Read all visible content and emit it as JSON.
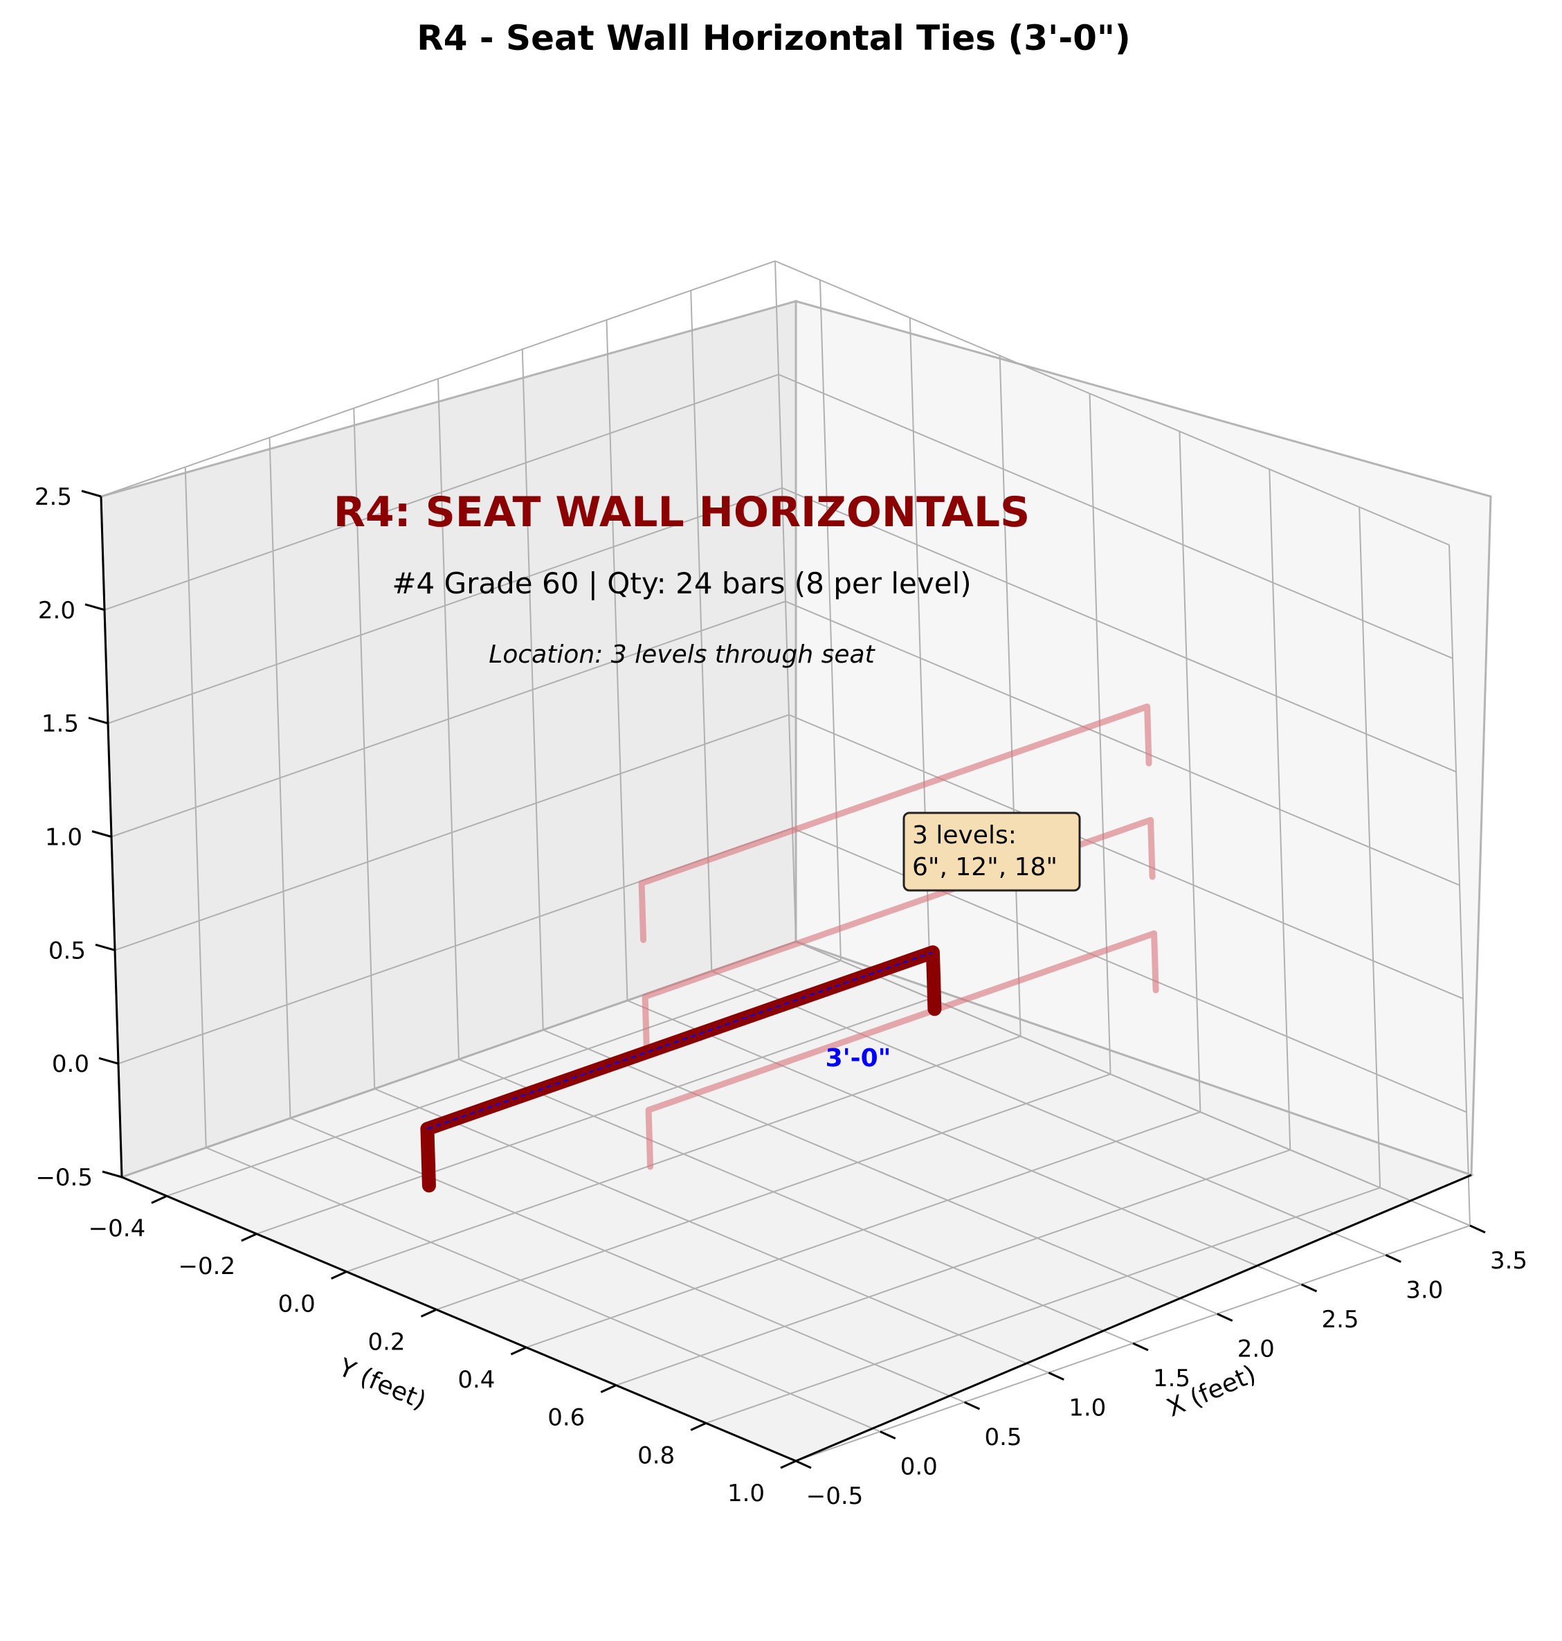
{
  "title": "R4 - Seat Wall Horizontal Ties (3'-0\")",
  "chart_data": {
    "type": "line",
    "projection": "3d",
    "xlabel": "X (feet)",
    "ylabel": "Y (feet)",
    "zlabel": "",
    "xlim": [
      -0.5,
      3.5
    ],
    "ylim": [
      -0.5,
      1.0
    ],
    "zlim": [
      -0.5,
      2.5
    ],
    "x_ticks": [
      "−0.5",
      "0.0",
      "0.5",
      "1.0",
      "1.5",
      "2.0",
      "2.5",
      "3.0",
      "3.5"
    ],
    "y_ticks": [
      "−0.4",
      "−0.2",
      "0.0",
      "0.2",
      "0.4",
      "0.6",
      "0.8",
      "1.0"
    ],
    "z_ticks": [
      "−0.5",
      "0.0",
      "0.5",
      "1.0",
      "1.5",
      "2.0",
      "2.5"
    ],
    "grid": true,
    "main_bar": {
      "color": "#8b0000",
      "points": [
        [
          0,
          0,
          -0.25
        ],
        [
          0,
          0,
          0
        ],
        [
          3,
          0,
          0
        ],
        [
          3,
          0,
          -0.25
        ]
      ]
    },
    "centerline_color": "#0000ff",
    "level_bars": {
      "color": "#d9747c",
      "heights_ft": [
        0.5,
        1.0,
        1.5
      ],
      "x_range": [
        0,
        3
      ],
      "y": 0.5,
      "leg_length_ft": 0.25
    }
  },
  "annotations": {
    "heading": "R4: SEAT WALL HORIZONTALS",
    "heading_color": "#8b0000",
    "spec": "#4 Grade 60 | Qty: 24 bars (8 per level)",
    "location": "Location: 3 levels through seat",
    "dimension": "3'-0\"",
    "dimension_color": "#0000ff",
    "levels_note_line1": "3 levels:",
    "levels_note_line2": "6\", 12\", 18\"",
    "levels_note_bg": "#f5deb3"
  }
}
